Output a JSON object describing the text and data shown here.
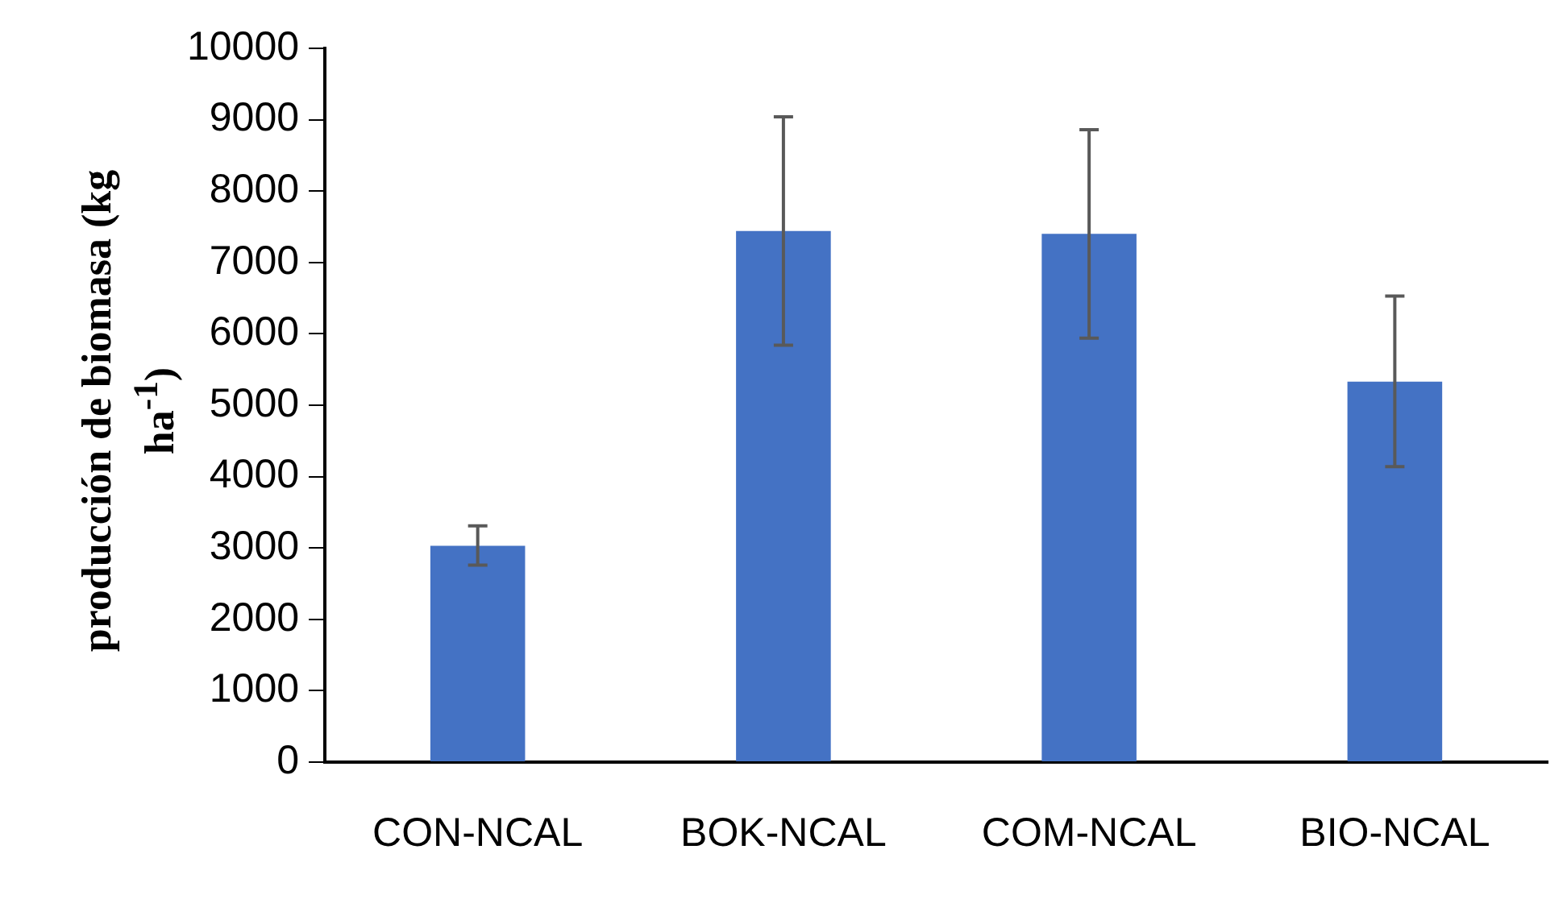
{
  "chart_data": {
    "type": "bar",
    "ylabel": "producción de biomasa (kg ha$^{-1}$)",
    "categories": [
      "CON-NCAL",
      "BOK-NCAL",
      "COM-NCAL",
      "BIO-NCAL"
    ],
    "values": [
      3030,
      7440,
      7400,
      5330
    ],
    "color": "#4472c4",
    "errors": [
      [
        2760,
        3310
      ],
      [
        5840,
        9040
      ],
      [
        5940,
        8860
      ],
      [
        4140,
        6530
      ]
    ],
    "ylim": [
      0,
      10000
    ],
    "yticks": [
      0,
      1000,
      2000,
      3000,
      4000,
      5000,
      6000,
      7000,
      8000,
      9000,
      10000
    ],
    "grid": false,
    "legend": false
  }
}
